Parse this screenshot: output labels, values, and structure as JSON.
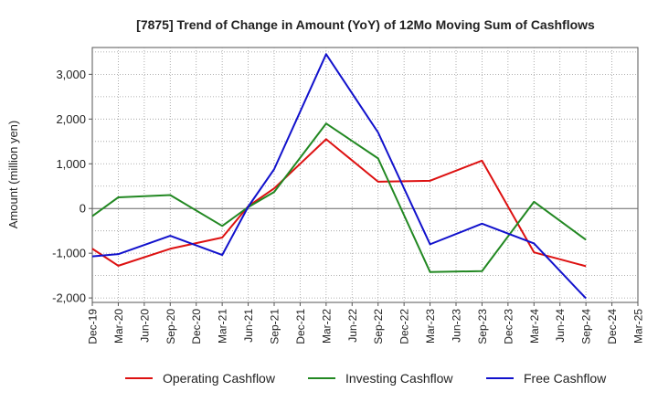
{
  "chart_data": {
    "type": "line",
    "title": "[7875]  Trend of Change in Amount (YoY) of 12Mo Moving Sum of Cashflows",
    "xlabel": "",
    "ylabel": "Amount (million yen)",
    "ylim": [
      -2100,
      3600
    ],
    "yticks": [
      -2000,
      -1000,
      0,
      1000,
      2000,
      3000
    ],
    "ytick_labels": [
      "-2,000",
      "-1,000",
      "0",
      "1,000",
      "2,000",
      "3,000"
    ],
    "grid": true,
    "legend_position": "bottom",
    "categories": [
      "Dec-19",
      "Mar-20",
      "Jun-20",
      "Sep-20",
      "Dec-20",
      "Mar-21",
      "Jun-21",
      "Sep-21",
      "Dec-21",
      "Mar-22",
      "Jun-22",
      "Sep-22",
      "Dec-22",
      "Mar-23",
      "Jun-23",
      "Sep-23",
      "Dec-23",
      "Mar-24",
      "Jun-24",
      "Sep-24",
      "Dec-24",
      "Mar-25"
    ],
    "xtick_labels": [
      "Dec-19",
      "Mar-20",
      "Jun-20",
      "Sep-20",
      "Dec-20",
      "Mar-21",
      "Jun-21",
      "Sep-21",
      "Dec-21",
      "Mar-22",
      "Jun-22",
      "Sep-22",
      "Dec-22",
      "Mar-23",
      "Jun-23",
      "Sep-23",
      "Dec-23",
      "Mar-24",
      "Jun-24",
      "Sep-24",
      "Dec-24",
      "Mar-25"
    ],
    "series": [
      {
        "name": "Operating Cashflow",
        "color": "#dd1111",
        "x": [
          "Dec-19",
          "Mar-20",
          "Sep-20",
          "Mar-21",
          "Jun-21",
          "Sep-21",
          "Mar-22",
          "Sep-22",
          "Mar-23",
          "Sep-23",
          "Mar-24",
          "Sep-24"
        ],
        "values": [
          -900,
          -1280,
          -900,
          -650,
          50,
          450,
          1550,
          600,
          620,
          1070,
          -980,
          -1290
        ]
      },
      {
        "name": "Investing Cashflow",
        "color": "#228822",
        "x": [
          "Dec-19",
          "Mar-20",
          "Sep-20",
          "Mar-21",
          "Jun-21",
          "Sep-21",
          "Mar-22",
          "Sep-22",
          "Mar-23",
          "Sep-23",
          "Mar-24",
          "Sep-24"
        ],
        "values": [
          -170,
          250,
          300,
          -390,
          30,
          370,
          1900,
          1120,
          -1420,
          -1400,
          150,
          -700
        ]
      },
      {
        "name": "Free Cashflow",
        "color": "#1111cc",
        "x": [
          "Dec-19",
          "Mar-20",
          "Sep-20",
          "Mar-21",
          "Jun-21",
          "Sep-21",
          "Mar-22",
          "Sep-22",
          "Mar-23",
          "Sep-23",
          "Mar-24",
          "Sep-24"
        ],
        "values": [
          -1070,
          -1020,
          -610,
          -1040,
          40,
          880,
          3450,
          1700,
          -800,
          -340,
          -780,
          -2010
        ]
      }
    ]
  }
}
